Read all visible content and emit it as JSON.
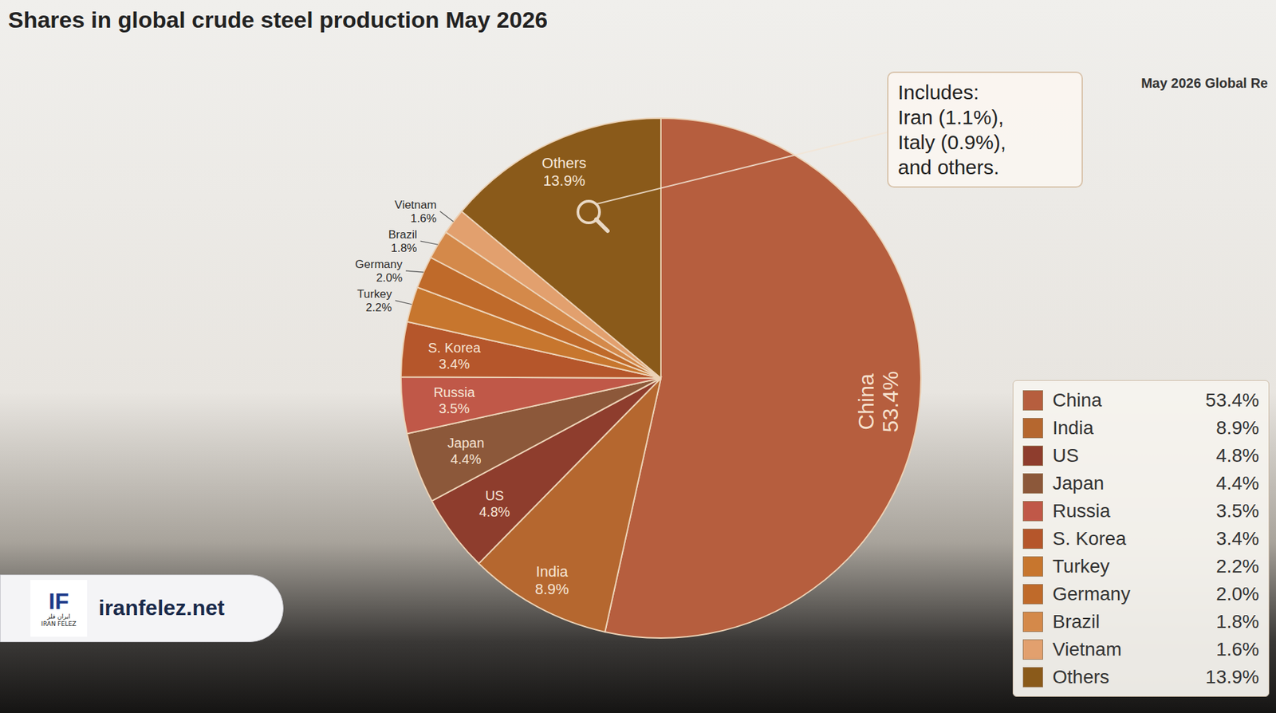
{
  "chart_data": {
    "type": "pie",
    "title": "Shares in global crude steel production May 2026",
    "categories": [
      "China",
      "India",
      "US",
      "Japan",
      "Russia",
      "S. Korea",
      "Turkey",
      "Germany",
      "Brazil",
      "Vietnam",
      "Others"
    ],
    "values": [
      53.4,
      8.9,
      4.8,
      4.4,
      3.5,
      3.4,
      2.2,
      2.0,
      1.8,
      1.6,
      13.9
    ],
    "value_labels": [
      "53.4%",
      "8.9%",
      "4.8%",
      "4.4%",
      "3.5%",
      "3.4%",
      "2.2%",
      "2.0%",
      "1.8%",
      "1.6%",
      "13.9%"
    ],
    "colors": [
      "#b65e3e",
      "#b5672f",
      "#8e3d2d",
      "#8c583a",
      "#c05848",
      "#b5562b",
      "#c7762e",
      "#bf6a2a",
      "#d4894a",
      "#e2a06e",
      "#8a5a1a"
    ],
    "data_labels": true,
    "legend": "bottom-right",
    "annotation": [
      "Includes:",
      "Iran (1.1%),",
      "Italy (0.9%),",
      "and others."
    ],
    "corner_text": "May 2026 Global Re",
    "watermark": {
      "site": "iranfelez.net",
      "logo": "IF",
      "logo_text": [
        "ایران فلز",
        "IRAN FELEZ"
      ]
    }
  }
}
